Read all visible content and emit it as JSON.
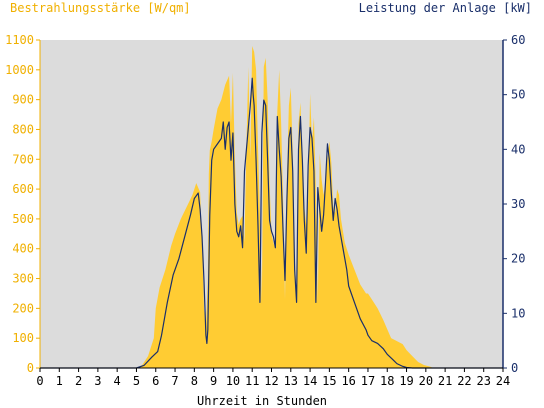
{
  "colors": {
    "background": "#ffffff",
    "plot_background": "#dcdcdc",
    "irradiance": "#ffcc33",
    "irradiance_axis": "#f0b000",
    "power_line": "#1a2f6a",
    "power_axis": "#1a2f6a",
    "x_axis": "#000000"
  },
  "chart_data": {
    "type": "area",
    "title_left": "Bestrahlungsstärke [W/qm]",
    "title_right": "Leistung der Anlage [kW]",
    "xlabel": "Uhrzeit in Stunden",
    "xlim": [
      0,
      24
    ],
    "x_ticks": [
      "0",
      "1",
      "2",
      "3",
      "4",
      "5",
      "6",
      "7",
      "8",
      "9",
      "10",
      "11",
      "12",
      "13",
      "14",
      "15",
      "16",
      "17",
      "18",
      "19",
      "20",
      "21",
      "22",
      "23",
      "24"
    ],
    "y_left_lim": [
      0,
      1100
    ],
    "y_left_ticks": [
      "0",
      "100",
      "200",
      "300",
      "400",
      "500",
      "600",
      "700",
      "800",
      "900",
      "1000",
      "1100"
    ],
    "y_right_lim": [
      0,
      60
    ],
    "y_right_ticks": [
      "0",
      "10",
      "20",
      "30",
      "40",
      "50",
      "60"
    ],
    "grid": false,
    "series": [
      {
        "name": "Bestrahlungsstärke [W/qm]",
        "axis": "left",
        "kind": "area",
        "x": [
          0,
          5.0,
          5.3,
          5.6,
          5.9,
          6.0,
          6.2,
          6.5,
          6.8,
          7.0,
          7.3,
          7.6,
          7.9,
          8.1,
          8.3,
          8.4,
          8.5,
          8.6,
          8.7,
          8.75,
          8.8,
          8.9,
          9.0,
          9.2,
          9.4,
          9.6,
          9.8,
          9.9,
          10.0,
          10.1,
          10.2,
          10.3,
          10.4,
          10.5,
          10.6,
          10.7,
          10.8,
          10.9,
          11.0,
          11.05,
          11.1,
          11.2,
          11.3,
          11.4,
          11.5,
          11.6,
          11.7,
          11.8,
          11.9,
          12.0,
          12.1,
          12.2,
          12.3,
          12.4,
          12.5,
          12.6,
          12.7,
          12.8,
          12.9,
          13.0,
          13.1,
          13.2,
          13.3,
          13.4,
          13.5,
          13.6,
          13.7,
          13.8,
          13.9,
          14.0,
          14.1,
          14.2,
          14.3,
          14.4,
          14.5,
          14.6,
          14.7,
          14.8,
          14.9,
          15.0,
          15.1,
          15.2,
          15.3,
          15.4,
          15.5,
          15.6,
          15.7,
          15.8,
          15.9,
          16.0,
          16.3,
          16.6,
          16.9,
          17.0,
          17.2,
          17.5,
          17.8,
          18.0,
          18.2,
          18.5,
          18.8,
          19.0,
          19.3,
          19.6,
          19.9,
          20.2,
          20.4,
          20.6,
          24
        ],
        "values": [
          0,
          0,
          10,
          40,
          100,
          200,
          270,
          330,
          410,
          450,
          500,
          540,
          580,
          620,
          590,
          420,
          200,
          130,
          300,
          650,
          730,
          760,
          800,
          870,
          900,
          950,
          980,
          820,
          990,
          700,
          520,
          480,
          500,
          510,
          420,
          750,
          1010,
          700,
          1080,
          1070,
          1060,
          1000,
          740,
          520,
          220,
          1010,
          1040,
          900,
          620,
          450,
          420,
          400,
          860,
          1000,
          820,
          560,
          230,
          640,
          880,
          940,
          720,
          380,
          230,
          820,
          890,
          700,
          540,
          480,
          560,
          920,
          760,
          840,
          600,
          220,
          720,
          630,
          580,
          620,
          700,
          760,
          690,
          540,
          520,
          600,
          580,
          500,
          460,
          420,
          400,
          380,
          330,
          280,
          250,
          250,
          230,
          200,
          160,
          130,
          100,
          90,
          80,
          60,
          40,
          20,
          10,
          5,
          0,
          0,
          0
        ],
        "color": "#ffcc33"
      },
      {
        "name": "Leistung der Anlage [kW]",
        "axis": "right",
        "kind": "line",
        "x": [
          0,
          5.0,
          5.4,
          5.8,
          6.1,
          6.3,
          6.6,
          6.9,
          7.2,
          7.5,
          7.8,
          8.0,
          8.2,
          8.3,
          8.4,
          8.5,
          8.6,
          8.65,
          8.7,
          8.8,
          8.9,
          9.0,
          9.2,
          9.4,
          9.5,
          9.6,
          9.7,
          9.8,
          9.9,
          10.0,
          10.1,
          10.2,
          10.3,
          10.4,
          10.5,
          10.6,
          10.7,
          10.8,
          10.9,
          11.0,
          11.05,
          11.1,
          11.2,
          11.3,
          11.4,
          11.5,
          11.6,
          11.7,
          11.8,
          11.9,
          12.0,
          12.1,
          12.2,
          12.3,
          12.4,
          12.5,
          12.6,
          12.7,
          12.8,
          12.9,
          13.0,
          13.1,
          13.2,
          13.3,
          13.4,
          13.5,
          13.6,
          13.7,
          13.8,
          13.9,
          14.0,
          14.1,
          14.2,
          14.3,
          14.4,
          14.5,
          14.6,
          14.7,
          14.8,
          14.9,
          15.0,
          15.1,
          15.2,
          15.3,
          15.4,
          15.5,
          15.6,
          15.7,
          15.8,
          15.9,
          16.0,
          16.3,
          16.6,
          16.9,
          17.0,
          17.2,
          17.5,
          17.8,
          18.0,
          18.3,
          18.5,
          18.8,
          19.0,
          19.3,
          19.6,
          19.9,
          20.2,
          20.4,
          20.6,
          24
        ],
        "values": [
          0,
          0,
          0.5,
          2,
          3,
          6,
          12,
          17,
          20,
          24,
          28,
          31,
          32,
          29,
          24,
          16,
          6,
          4.5,
          7,
          28,
          38,
          40,
          41,
          42,
          45,
          40,
          44,
          45,
          38,
          43,
          30,
          25,
          24,
          26,
          22,
          36,
          40,
          44,
          48,
          53,
          50,
          48,
          38,
          26,
          12,
          43,
          49,
          48,
          38,
          27,
          25,
          24,
          22,
          46,
          40,
          35,
          25,
          16,
          31,
          42,
          44,
          36,
          18,
          12,
          40,
          46,
          38,
          27,
          21,
          37,
          44,
          42,
          36,
          12,
          33,
          29,
          25,
          28,
          34,
          41,
          38,
          32,
          27,
          31,
          29,
          26,
          24,
          22,
          20,
          18,
          15,
          12,
          9,
          7,
          6,
          5,
          4.5,
          3.5,
          2.5,
          1.5,
          0.8,
          0.3,
          0.1,
          0,
          0,
          0,
          0,
          0,
          0,
          0
        ],
        "color": "#1a2f6a"
      }
    ]
  }
}
